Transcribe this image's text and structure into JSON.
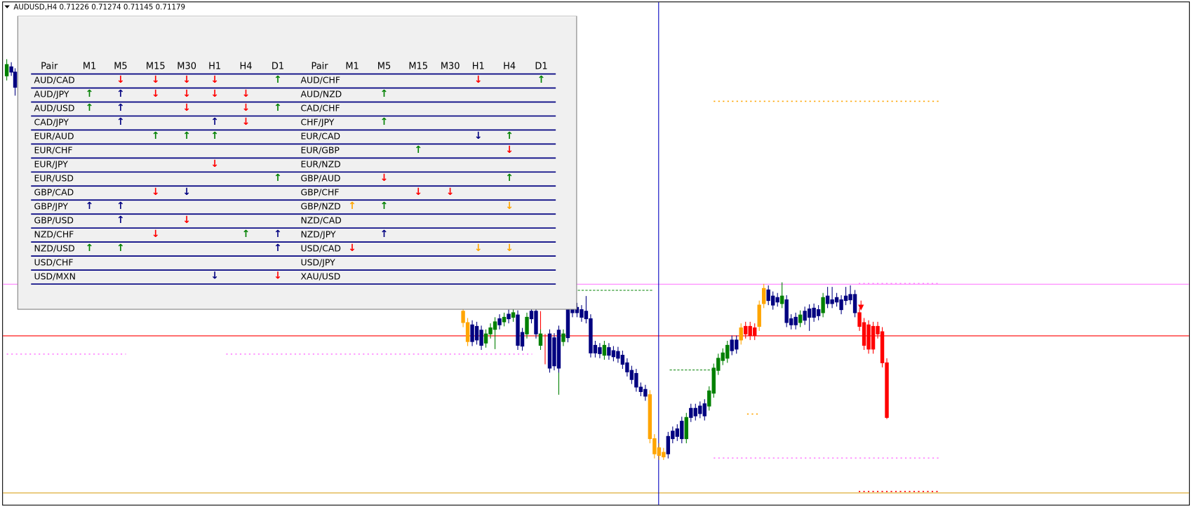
{
  "header": {
    "symbol_text": "AUDUSD,H4  0.71226 0.71274 0.71145 0.71179"
  },
  "table": {
    "columns": [
      "Pair",
      "M1",
      "M5",
      "M15",
      "M30",
      "H1",
      "H4",
      "D1"
    ],
    "left": [
      {
        "pair": "AUD/CAD",
        "cells": [
          null,
          {
            "text": "↓",
            "color": "#ff0000"
          },
          {
            "text": "↓",
            "color": "#ff0000"
          },
          {
            "text": "↓",
            "color": "#ff0000"
          },
          {
            "text": "↓",
            "color": "#ff0000"
          },
          null,
          {
            "text": "↑",
            "color": "#008000"
          }
        ]
      },
      {
        "pair": "AUD/JPY",
        "cells": [
          {
            "text": "↑",
            "color": "#008000"
          },
          {
            "text": "↑",
            "color": "#000080"
          },
          {
            "text": "↓",
            "color": "#ff0000"
          },
          {
            "text": "↓",
            "color": "#ff0000"
          },
          {
            "text": "↓",
            "color": "#ff0000"
          },
          {
            "text": "↓",
            "color": "#ff0000"
          },
          null
        ]
      },
      {
        "pair": "AUD/USD",
        "cells": [
          {
            "text": "↑",
            "color": "#008000"
          },
          {
            "text": "↑",
            "color": "#000080"
          },
          null,
          {
            "text": "↓",
            "color": "#ff0000"
          },
          null,
          {
            "text": "↓",
            "color": "#ff0000"
          },
          {
            "text": "↑",
            "color": "#008000"
          }
        ]
      },
      {
        "pair": "CAD/JPY",
        "cells": [
          null,
          {
            "text": "↑",
            "color": "#000080"
          },
          null,
          null,
          {
            "text": "↑",
            "color": "#000080"
          },
          {
            "text": "↓",
            "color": "#ff0000"
          },
          null
        ]
      },
      {
        "pair": "EUR/AUD",
        "cells": [
          null,
          null,
          {
            "text": "↑",
            "color": "#008000"
          },
          {
            "text": "↑",
            "color": "#008000"
          },
          {
            "text": "↑",
            "color": "#008000"
          },
          null,
          null
        ]
      },
      {
        "pair": "EUR/CHF",
        "cells": [
          null,
          null,
          null,
          null,
          null,
          null,
          null
        ]
      },
      {
        "pair": "EUR/JPY",
        "cells": [
          null,
          null,
          null,
          null,
          {
            "text": "↓",
            "color": "#ff0000"
          },
          null,
          null
        ]
      },
      {
        "pair": "EUR/USD",
        "cells": [
          null,
          null,
          null,
          null,
          null,
          null,
          {
            "text": "↑",
            "color": "#008000"
          }
        ]
      },
      {
        "pair": "GBP/CAD",
        "cells": [
          null,
          null,
          {
            "text": "↓",
            "color": "#ff0000"
          },
          {
            "text": "↓",
            "color": "#000080"
          },
          null,
          null,
          null
        ]
      },
      {
        "pair": "GBP/JPY",
        "cells": [
          {
            "text": "↑",
            "color": "#000080"
          },
          {
            "text": "↑",
            "color": "#000080"
          },
          null,
          null,
          null,
          null,
          null
        ]
      },
      {
        "pair": "GBP/USD",
        "cells": [
          null,
          {
            "text": "↑",
            "color": "#000080"
          },
          null,
          {
            "text": "↓",
            "color": "#ff0000"
          },
          null,
          null,
          null
        ]
      },
      {
        "pair": "NZD/CHF",
        "cells": [
          null,
          null,
          {
            "text": "↓",
            "color": "#ff0000"
          },
          null,
          null,
          {
            "text": "↑",
            "color": "#008000"
          },
          {
            "text": "↑",
            "color": "#000080"
          }
        ]
      },
      {
        "pair": "NZD/USD",
        "cells": [
          {
            "text": "↑",
            "color": "#008000"
          },
          {
            "text": "↑",
            "color": "#008000"
          },
          null,
          null,
          null,
          null,
          {
            "text": "↑",
            "color": "#000080"
          }
        ]
      },
      {
        "pair": "USD/CHF",
        "cells": [
          null,
          null,
          null,
          null,
          null,
          null,
          null
        ]
      },
      {
        "pair": "USD/MXN",
        "cells": [
          null,
          null,
          null,
          null,
          {
            "text": "↓",
            "color": "#000080"
          },
          null,
          {
            "text": "↓",
            "color": "#ff0000"
          }
        ]
      }
    ],
    "right": [
      {
        "pair": "AUD/CHF",
        "cells": [
          null,
          null,
          null,
          null,
          {
            "text": "↓",
            "color": "#ff0000"
          },
          null,
          {
            "text": "↑",
            "color": "#008000"
          }
        ]
      },
      {
        "pair": "AUD/NZD",
        "cells": [
          null,
          {
            "text": "↑",
            "color": "#008000"
          },
          null,
          null,
          null,
          null,
          null
        ]
      },
      {
        "pair": "CAD/CHF",
        "cells": [
          null,
          null,
          null,
          null,
          null,
          null,
          null
        ]
      },
      {
        "pair": "CHF/JPY",
        "cells": [
          null,
          {
            "text": "↑",
            "color": "#008000"
          },
          null,
          null,
          null,
          null,
          null
        ]
      },
      {
        "pair": "EUR/CAD",
        "cells": [
          null,
          null,
          null,
          null,
          {
            "text": "↓",
            "color": "#000080"
          },
          {
            "text": "↑",
            "color": "#008000"
          },
          null
        ]
      },
      {
        "pair": "EUR/GBP",
        "cells": [
          null,
          null,
          {
            "text": "↑",
            "color": "#008000"
          },
          null,
          null,
          {
            "text": "↓",
            "color": "#ff0000"
          },
          null
        ]
      },
      {
        "pair": "EUR/NZD",
        "cells": [
          null,
          null,
          null,
          null,
          null,
          null,
          null
        ]
      },
      {
        "pair": "GBP/AUD",
        "cells": [
          null,
          {
            "text": "↓",
            "color": "#ff0000"
          },
          null,
          null,
          null,
          {
            "text": "↑",
            "color": "#008000"
          },
          null
        ]
      },
      {
        "pair": "GBP/CHF",
        "cells": [
          null,
          null,
          {
            "text": "↓",
            "color": "#ff0000"
          },
          {
            "text": "↓",
            "color": "#ff0000"
          },
          null,
          null,
          null
        ]
      },
      {
        "pair": "GBP/NZD",
        "cells": [
          {
            "text": "↑",
            "color": "#ffa500"
          },
          {
            "text": "↑",
            "color": "#008000"
          },
          null,
          null,
          null,
          {
            "text": "↓",
            "color": "#ffa500"
          },
          null
        ]
      },
      {
        "pair": "NZD/CAD",
        "cells": [
          null,
          null,
          null,
          null,
          null,
          null,
          null
        ]
      },
      {
        "pair": "NZD/JPY",
        "cells": [
          null,
          {
            "text": "↑",
            "color": "#000080"
          },
          null,
          null,
          null,
          null,
          null
        ]
      },
      {
        "pair": "USD/CAD",
        "cells": [
          {
            "text": "↓",
            "color": "#ff0000"
          },
          null,
          null,
          null,
          {
            "text": "↓",
            "color": "#ffa500"
          },
          {
            "text": "↓",
            "color": "#ffa500"
          },
          null
        ]
      },
      {
        "pair": "USD/JPY",
        "cells": [
          null,
          null,
          null,
          null,
          null,
          null,
          null
        ]
      },
      {
        "pair": "XAU/USD",
        "cells": [
          null,
          null,
          null,
          null,
          null,
          null,
          null
        ]
      }
    ]
  }
}
